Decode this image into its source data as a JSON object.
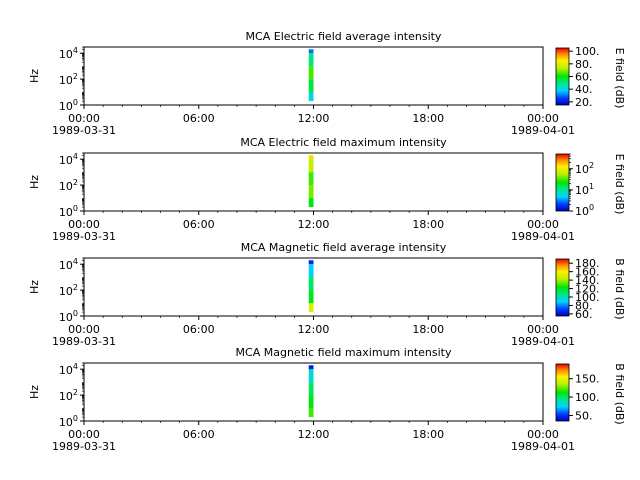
{
  "chart_data": [
    {
      "type": "heatmap",
      "title": "MCA  Electric field average intensity",
      "ylabel": "Hz",
      "y_scale": "log",
      "ylim": [
        1,
        30000
      ],
      "y_ticks": [
        {
          "value": 1,
          "base": "10",
          "exp": "0"
        },
        {
          "value": 100,
          "base": "10",
          "exp": "2"
        },
        {
          "value": 10000,
          "base": "10",
          "exp": "4"
        }
      ],
      "x_ticks": [
        {
          "hour": 0,
          "label": "00:00",
          "date": "1989-03-31"
        },
        {
          "hour": 6,
          "label": "06:00",
          "date": ""
        },
        {
          "hour": 12,
          "label": "12:00",
          "date": ""
        },
        {
          "hour": 18,
          "label": "18:00",
          "date": ""
        },
        {
          "hour": 24,
          "label": "00:00",
          "date": "1989-04-01"
        }
      ],
      "xlim_hours": [
        0,
        24
      ],
      "data_span_hours": [
        11.75,
        12.0
      ],
      "colorbar": {
        "label": "E field (dB)",
        "scale": "linear",
        "range": [
          15,
          105
        ],
        "ticks": [
          {
            "value": 20,
            "text": "20."
          },
          {
            "value": 40,
            "text": "40."
          },
          {
            "value": 60,
            "text": "60."
          },
          {
            "value": 80,
            "text": "80."
          },
          {
            "value": 100,
            "text": "100."
          }
        ]
      },
      "bins": [
        {
          "fmin": 2,
          "fmax": 10,
          "value": 40
        },
        {
          "fmin": 10,
          "fmax": 100,
          "value": 55
        },
        {
          "fmin": 100,
          "fmax": 1000,
          "value": 65
        },
        {
          "fmin": 1000,
          "fmax": 10000,
          "value": 50
        },
        {
          "fmin": 10000,
          "fmax": 20000,
          "value": 30
        }
      ]
    },
    {
      "type": "heatmap",
      "title": "MCA  Electric field maximum intensity",
      "ylabel": "Hz",
      "y_scale": "log",
      "ylim": [
        1,
        30000
      ],
      "y_ticks": [
        {
          "value": 1,
          "base": "10",
          "exp": "0"
        },
        {
          "value": 100,
          "base": "10",
          "exp": "2"
        },
        {
          "value": 10000,
          "base": "10",
          "exp": "4"
        }
      ],
      "x_ticks": [
        {
          "hour": 0,
          "label": "00:00",
          "date": "1989-03-31"
        },
        {
          "hour": 6,
          "label": "06:00",
          "date": ""
        },
        {
          "hour": 12,
          "label": "12:00",
          "date": ""
        },
        {
          "hour": 18,
          "label": "18:00",
          "date": ""
        },
        {
          "hour": 24,
          "label": "00:00",
          "date": "1989-04-01"
        }
      ],
      "xlim_hours": [
        0,
        24
      ],
      "data_span_hours": [
        11.75,
        12.0
      ],
      "colorbar": {
        "label": "E field (dB)",
        "scale": "log",
        "range": [
          1,
          500
        ],
        "ticks": [
          {
            "value": 1,
            "base": "10",
            "exp": "0"
          },
          {
            "value": 10,
            "base": "10",
            "exp": "1"
          },
          {
            "value": 100,
            "base": "10",
            "exp": "2"
          }
        ]
      },
      "bins": [
        {
          "fmin": 2,
          "fmax": 10,
          "value": 20
        },
        {
          "fmin": 10,
          "fmax": 100,
          "value": 40
        },
        {
          "fmin": 100,
          "fmax": 1000,
          "value": 30
        },
        {
          "fmin": 1000,
          "fmax": 10000,
          "value": 60
        },
        {
          "fmin": 10000,
          "fmax": 20000,
          "value": 150
        }
      ]
    },
    {
      "type": "heatmap",
      "title": "MCA  Magnetic field average intensity",
      "ylabel": "Hz",
      "y_scale": "log",
      "ylim": [
        1,
        30000
      ],
      "y_ticks": [
        {
          "value": 1,
          "base": "10",
          "exp": "0"
        },
        {
          "value": 100,
          "base": "10",
          "exp": "2"
        },
        {
          "value": 10000,
          "base": "10",
          "exp": "4"
        }
      ],
      "x_ticks": [
        {
          "hour": 0,
          "label": "00:00",
          "date": "1989-03-31"
        },
        {
          "hour": 6,
          "label": "06:00",
          "date": ""
        },
        {
          "hour": 12,
          "label": "12:00",
          "date": ""
        },
        {
          "hour": 18,
          "label": "18:00",
          "date": ""
        },
        {
          "hour": 24,
          "label": "00:00",
          "date": "1989-04-01"
        }
      ],
      "xlim_hours": [
        0,
        24
      ],
      "data_span_hours": [
        11.75,
        12.0
      ],
      "colorbar": {
        "label": "B field (dB)",
        "scale": "linear",
        "range": [
          55,
          190
        ],
        "ticks": [
          {
            "value": 60,
            "text": "60."
          },
          {
            "value": 80,
            "text": "80."
          },
          {
            "value": 100,
            "text": "100."
          },
          {
            "value": 120,
            "text": "120."
          },
          {
            "value": 140,
            "text": "140."
          },
          {
            "value": 160,
            "text": "160."
          },
          {
            "value": 180,
            "text": "180."
          }
        ]
      },
      "bins": [
        {
          "fmin": 2,
          "fmax": 10,
          "value": 150
        },
        {
          "fmin": 10,
          "fmax": 100,
          "value": 120
        },
        {
          "fmin": 100,
          "fmax": 1000,
          "value": 110
        },
        {
          "fmin": 1000,
          "fmax": 10000,
          "value": 90
        },
        {
          "fmin": 10000,
          "fmax": 20000,
          "value": 65
        }
      ]
    },
    {
      "type": "heatmap",
      "title": "MCA  Magnetic field maximum intensity",
      "ylabel": "Hz",
      "y_scale": "log",
      "ylim": [
        1,
        30000
      ],
      "y_ticks": [
        {
          "value": 1,
          "base": "10",
          "exp": "0"
        },
        {
          "value": 100,
          "base": "10",
          "exp": "2"
        },
        {
          "value": 10000,
          "base": "10",
          "exp": "4"
        }
      ],
      "x_ticks": [
        {
          "hour": 0,
          "label": "00:00",
          "date": "1989-03-31"
        },
        {
          "hour": 6,
          "label": "06:00",
          "date": ""
        },
        {
          "hour": 12,
          "label": "12:00",
          "date": ""
        },
        {
          "hour": 18,
          "label": "18:00",
          "date": ""
        },
        {
          "hour": 24,
          "label": "00:00",
          "date": "1989-04-01"
        }
      ],
      "xlim_hours": [
        0,
        24
      ],
      "data_span_hours": [
        11.75,
        12.0
      ],
      "colorbar": {
        "label": "B field (dB)",
        "scale": "linear",
        "range": [
          35,
          190
        ],
        "ticks": [
          {
            "value": 50,
            "text": "50."
          },
          {
            "value": 100,
            "text": "100."
          },
          {
            "value": 150,
            "text": "150."
          }
        ]
      },
      "bins": [
        {
          "fmin": 2,
          "fmax": 10,
          "value": 120
        },
        {
          "fmin": 10,
          "fmax": 100,
          "value": 110
        },
        {
          "fmin": 100,
          "fmax": 1000,
          "value": 100
        },
        {
          "fmin": 1000,
          "fmax": 10000,
          "value": 80
        },
        {
          "fmin": 10000,
          "fmax": 20000,
          "value": 45
        }
      ]
    }
  ]
}
